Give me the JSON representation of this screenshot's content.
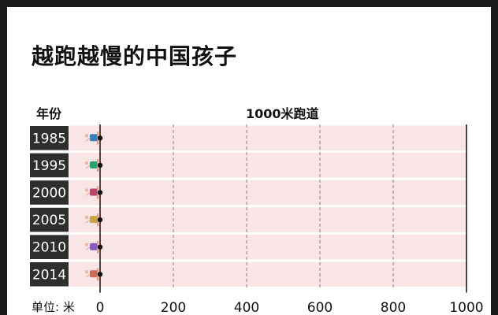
{
  "title": "越跑越慢的中国孩子",
  "header": {
    "year_label": "年份",
    "track_label": "1000米跑道"
  },
  "unit_label": "单位: 米",
  "chart_data": {
    "type": "bar",
    "title": "越跑越慢的中国孩子",
    "xlabel": "1000米跑道",
    "ylabel": "年份",
    "categories": [
      "1985",
      "1995",
      "2000",
      "2005",
      "2010",
      "2014"
    ],
    "values": [
      0,
      0,
      0,
      0,
      0,
      0
    ],
    "xlim": [
      0,
      1000
    ],
    "xticks": [
      "0",
      "200",
      "400",
      "600",
      "800",
      "1000"
    ],
    "runner_colors": [
      "#3a7fb8",
      "#2f9e6e",
      "#b8456a",
      "#c9a24a",
      "#8a5ab8",
      "#c96a5a"
    ],
    "lane_color": "#f9e4e6",
    "label_bg": "#2e2e2e"
  }
}
